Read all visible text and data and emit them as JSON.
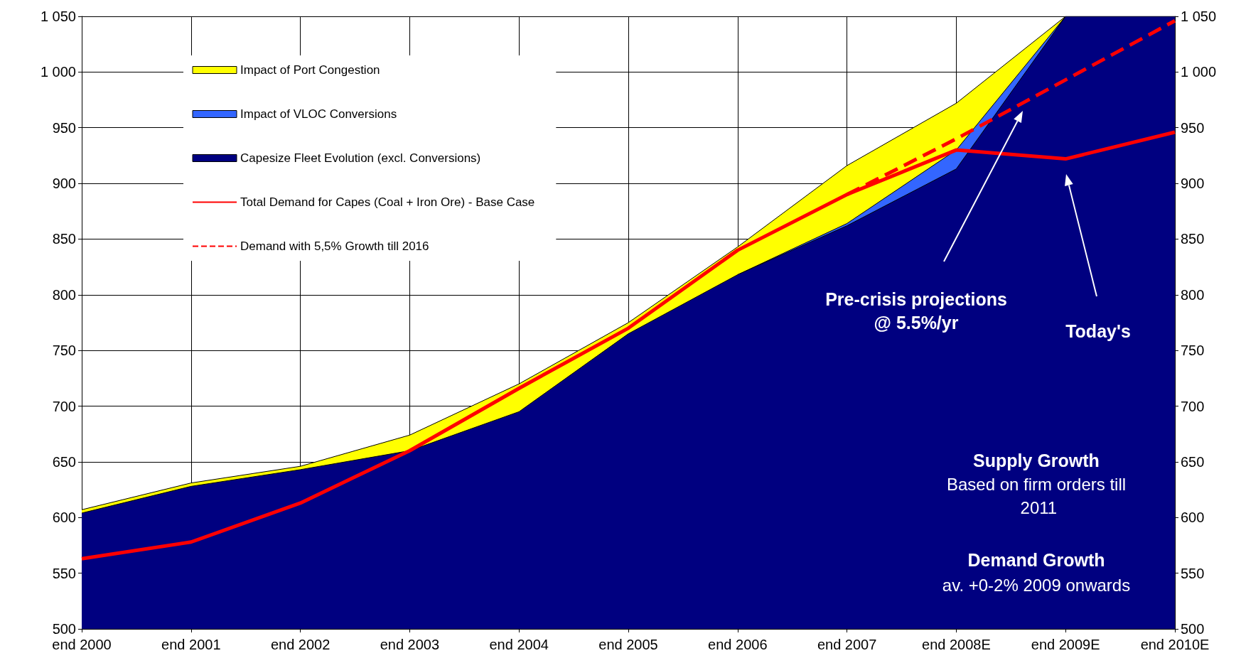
{
  "chart_data": {
    "type": "area",
    "categories": [
      "end 2000",
      "end 2001",
      "end 2002",
      "end 2003",
      "end 2004",
      "end 2005",
      "end 2006",
      "end 2007",
      "end 2008E",
      "end 2009E",
      "end 2010E"
    ],
    "series": [
      {
        "name": "Impact of Port Congestion",
        "color": "#ffff00",
        "values": [
          607,
          631,
          646,
          674,
          720,
          775,
          843,
          916,
          972,
          1050,
          null
        ]
      },
      {
        "name": "Impact of VLOC Conversions",
        "color": "#3366ff",
        "values": [
          null,
          null,
          null,
          null,
          null,
          null,
          818,
          864,
          930,
          1050,
          null
        ]
      },
      {
        "name": "Capesize Fleet Evolution (excl. Conversions)",
        "color": "#000080",
        "values": [
          604,
          628,
          643,
          660,
          695,
          765,
          818,
          862,
          913,
          1050,
          1050
        ]
      },
      {
        "name": "Total Demand for Capes (Coal + Iron Ore) - Base Case",
        "type": "line",
        "color": "#ff0000",
        "line_style": "solid",
        "values": [
          563,
          578,
          613,
          660,
          716,
          770,
          840,
          890,
          930,
          922,
          946
        ]
      },
      {
        "name": "Demand with 5,5% Growth till 2016",
        "type": "line",
        "color": "#ff0000",
        "line_style": "dashed",
        "values": [
          null,
          null,
          null,
          null,
          null,
          null,
          null,
          890,
          940,
          993,
          1046
        ]
      }
    ],
    "ylim": [
      500,
      1050
    ],
    "yticks": [
      500,
      550,
      600,
      650,
      700,
      750,
      800,
      850,
      900,
      950,
      {
        "value": 1000,
        "label": "1 000"
      },
      {
        "value": 1050,
        "label": "1 050"
      }
    ],
    "y2lim": [
      500,
      1050
    ],
    "y2ticks": [
      500,
      550,
      600,
      650,
      700,
      750,
      800,
      850,
      900,
      950,
      {
        "value": 1000,
        "label": "1 000"
      },
      {
        "value": 1050,
        "label": "1 050"
      }
    ],
    "grid": true,
    "legend": "top left",
    "marker": "none",
    "annotations": [
      "Pre-crisis projections",
      "@ 5.5%/yr",
      "Today's",
      "Supply Growth",
      "Based on firm orders till 2011",
      "Demand Growth",
      "av. +0-2% 2009 onwards"
    ]
  }
}
